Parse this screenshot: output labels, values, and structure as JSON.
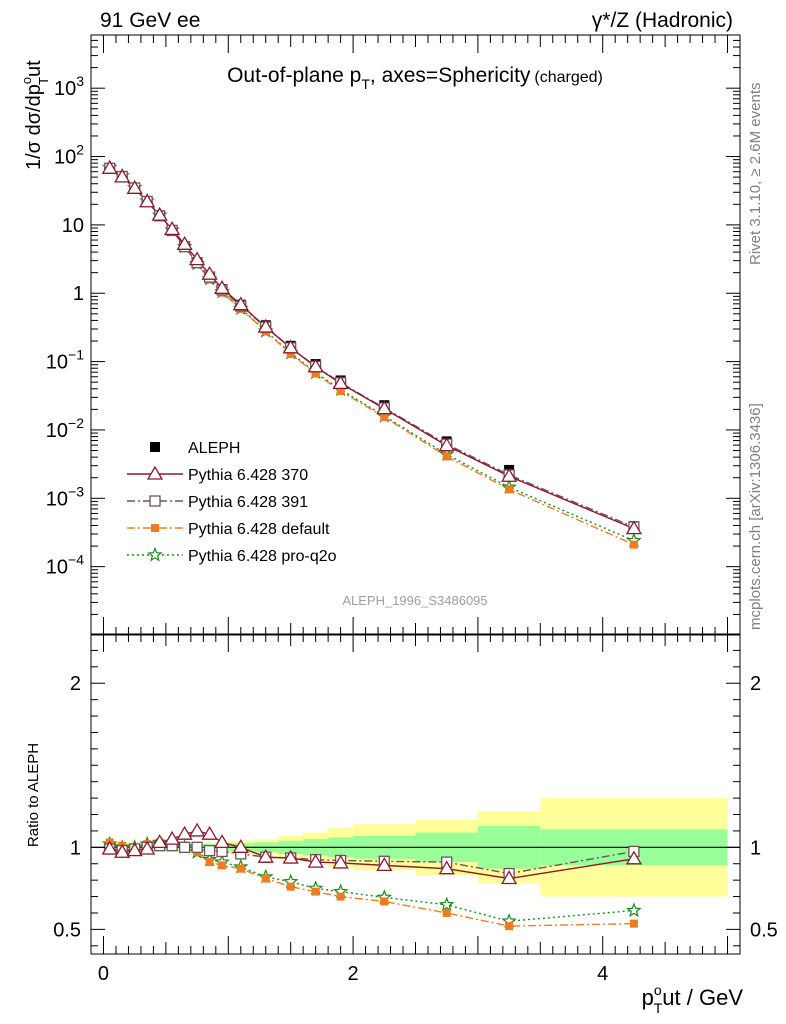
{
  "header": {
    "left_label": "91 GeV ee",
    "right_label": "γ*/Z (Hadronic)"
  },
  "side_labels": {
    "rivet": "Rivet 3.1.10, ≥ 2.6M events",
    "mcplots": "mcplots.cern.ch [arXiv:1306.3436]"
  },
  "chart_data": [
    {
      "type": "scatter",
      "panel": "main",
      "title": "Out-of-plane pT, axes=Sphericity (charged)",
      "title_main": "Out-of-plane p",
      "title_sub": "T",
      "title_rest": ", axes=Sphericity",
      "title_note": "(charged)",
      "ylabel": "1/σ dσ/dpToout",
      "ylabel_main": "1/σ dσ/dp",
      "ylabel_sup": "o",
      "ylabel_sub": "T",
      "ylabel_end": "ut",
      "yscale": "log",
      "xlim": [
        -0.1,
        5.1
      ],
      "ylim": [
        1e-05,
        6000
      ],
      "y_tick_labels": [
        "10^-4",
        "10^-3",
        "10^-2",
        "10^-1",
        "1",
        "10",
        "10^2",
        "10^3"
      ],
      "watermark": "ALEPH_1996_S3486095",
      "legend_position": "lower-left",
      "x": [
        0.05,
        0.15,
        0.25,
        0.35,
        0.45,
        0.55,
        0.65,
        0.75,
        0.85,
        0.95,
        1.1,
        1.3,
        1.5,
        1.7,
        1.9,
        2.25,
        2.75,
        3.25,
        4.25
      ],
      "data_series": {
        "name": "ALEPH",
        "values": [
          68,
          52,
          35,
          22,
          13.5,
          8.2,
          4.8,
          2.8,
          1.75,
          1.15,
          0.68,
          0.34,
          0.17,
          0.092,
          0.053,
          0.023,
          0.0068,
          0.0026,
          0.00039
        ]
      },
      "series": [
        {
          "name": "Pythia 6.428 370",
          "color": "#8b1a2a",
          "marker": "open-triangle",
          "dash": "solid",
          "values": [
            67.3,
            50.4,
            34.3,
            21.8,
            13.9,
            8.6,
            5.2,
            3.1,
            1.9,
            1.18,
            0.68,
            0.32,
            0.159,
            0.084,
            0.048,
            0.0205,
            0.0059,
            0.0021,
            0.00036
          ]
        },
        {
          "name": "Pythia 6.428 391",
          "color": "#705060",
          "marker": "open-square",
          "dash": "dashdot",
          "values": [
            67.3,
            51.0,
            34.7,
            22.0,
            13.6,
            8.3,
            4.8,
            2.8,
            1.72,
            1.12,
            0.65,
            0.32,
            0.159,
            0.085,
            0.049,
            0.021,
            0.0062,
            0.0022,
            0.00038
          ]
        },
        {
          "name": "Pythia 6.428 default",
          "color": "#f07c20",
          "marker": "filled-square",
          "dash": "dashdot",
          "values": [
            70.0,
            52.5,
            35.0,
            22.4,
            13.9,
            8.4,
            4.8,
            2.7,
            1.59,
            1.02,
            0.59,
            0.276,
            0.129,
            0.067,
            0.037,
            0.0154,
            0.0041,
            0.00135,
            0.00021
          ]
        },
        {
          "name": "Pythia 6.428 pro-q2o",
          "color": "#1a8c1a",
          "marker": "open-star",
          "dash": "dotted",
          "values": [
            69.4,
            52.0,
            35.0,
            22.4,
            13.9,
            8.4,
            4.8,
            2.72,
            1.62,
            1.05,
            0.6,
            0.28,
            0.134,
            0.069,
            0.039,
            0.016,
            0.0044,
            0.00145,
            0.00024
          ]
        }
      ]
    },
    {
      "type": "scatter",
      "panel": "ratio",
      "xlabel": "pToout / GeV",
      "xlabel_main": "p",
      "xlabel_sup": "o",
      "xlabel_sub": "T",
      "xlabel_end": "ut / GeV",
      "ylabel": "Ratio to ALEPH",
      "xlim": [
        -0.1,
        5.1
      ],
      "ylim": [
        0.35,
        2.3
      ],
      "x_tick_labels": [
        "0",
        "2",
        "4"
      ],
      "y_tick_labels": [
        "0.5",
        "1",
        "2"
      ],
      "bands": {
        "x_edges": [
          0,
          0.1,
          0.2,
          0.3,
          0.4,
          0.5,
          0.6,
          0.7,
          0.8,
          0.9,
          1.0,
          1.2,
          1.4,
          1.6,
          1.8,
          2.0,
          2.5,
          3.0,
          3.5,
          5.0
        ],
        "stat": [
          0.02,
          0.02,
          0.02,
          0.02,
          0.02,
          0.02,
          0.02,
          0.02,
          0.02,
          0.02,
          0.025,
          0.03,
          0.04,
          0.05,
          0.06,
          0.07,
          0.09,
          0.13,
          0.11
        ],
        "total": [
          0.03,
          0.03,
          0.03,
          0.03,
          0.03,
          0.03,
          0.03,
          0.03,
          0.03,
          0.03,
          0.04,
          0.05,
          0.07,
          0.09,
          0.12,
          0.14,
          0.17,
          0.22,
          0.3
        ]
      },
      "series": [
        {
          "name": "Pythia 6.428 370",
          "values": [
            0.99,
            0.97,
            0.98,
            0.99,
            1.03,
            1.05,
            1.08,
            1.1,
            1.08,
            1.03,
            1.0,
            0.94,
            0.935,
            0.91,
            0.905,
            0.89,
            0.87,
            0.81,
            0.93
          ]
        },
        {
          "name": "Pythia 6.428 391",
          "values": [
            0.99,
            0.98,
            0.99,
            1.0,
            1.01,
            1.01,
            1.0,
            1.0,
            0.98,
            0.975,
            0.96,
            0.94,
            0.935,
            0.925,
            0.92,
            0.915,
            0.91,
            0.84,
            0.975
          ]
        },
        {
          "name": "Pythia 6.428 default",
          "values": [
            1.03,
            1.01,
            1.0,
            1.02,
            1.03,
            1.02,
            1.0,
            0.97,
            0.91,
            0.89,
            0.87,
            0.81,
            0.76,
            0.73,
            0.7,
            0.67,
            0.6,
            0.52,
            0.535
          ]
        },
        {
          "name": "Pythia 6.428 pro-q2o",
          "values": [
            1.02,
            1.0,
            1.0,
            1.02,
            1.03,
            1.02,
            1.0,
            0.97,
            0.925,
            0.91,
            0.88,
            0.82,
            0.79,
            0.75,
            0.73,
            0.695,
            0.65,
            0.55,
            0.615
          ]
        }
      ]
    }
  ]
}
